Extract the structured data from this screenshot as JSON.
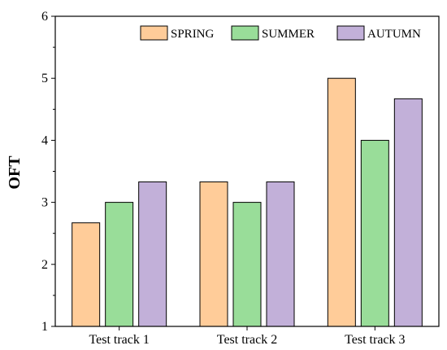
{
  "chart_data": {
    "type": "bar",
    "categories": [
      "Test track 1",
      "Test track 2",
      "Test track 3"
    ],
    "series": [
      {
        "name": "SPRING",
        "values": [
          2.67,
          3.33,
          5.0
        ],
        "color": "#FFCC99"
      },
      {
        "name": "SUMMER",
        "values": [
          3.0,
          3.0,
          4.0
        ],
        "color": "#99DD99"
      },
      {
        "name": "AUTUMN",
        "values": [
          3.33,
          3.33,
          4.67
        ],
        "color": "#C2B0D9"
      }
    ],
    "xlabel": "",
    "ylabel": "OFT",
    "ylim": [
      1,
      6
    ],
    "yticks": [
      "1",
      "2",
      "3",
      "4",
      "5",
      "6"
    ],
    "grid": false,
    "legend_position": "top-right",
    "legend_layout": "horizontal"
  }
}
